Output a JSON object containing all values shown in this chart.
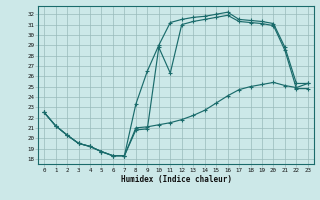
{
  "xlabel": "Humidex (Indice chaleur)",
  "background_color": "#cce8e8",
  "grid_color": "#99bbbb",
  "line_color": "#1a6b6b",
  "xlim": [
    -0.5,
    23.5
  ],
  "ylim": [
    17.5,
    32.8
  ],
  "xtick_vals": [
    0,
    1,
    2,
    3,
    4,
    5,
    6,
    7,
    8,
    9,
    10,
    11,
    12,
    13,
    14,
    15,
    16,
    17,
    18,
    19,
    20,
    21,
    22,
    23
  ],
  "ytick_vals": [
    18,
    19,
    20,
    21,
    22,
    23,
    24,
    25,
    26,
    27,
    28,
    29,
    30,
    31,
    32
  ],
  "curve1_x": [
    0,
    1,
    2,
    3,
    4,
    5,
    6,
    7,
    8,
    9,
    10,
    11,
    12,
    13,
    14,
    15,
    16,
    17,
    18,
    19,
    20,
    21,
    22,
    23
  ],
  "curve1_y": [
    22.5,
    21.2,
    20.3,
    19.5,
    19.2,
    18.7,
    18.3,
    18.3,
    23.3,
    26.5,
    29.0,
    31.2,
    31.5,
    31.7,
    31.8,
    32.0,
    32.2,
    31.5,
    31.4,
    31.3,
    31.1,
    28.8,
    25.3,
    25.3
  ],
  "curve2_x": [
    0,
    1,
    2,
    3,
    4,
    5,
    6,
    7,
    8,
    9,
    10,
    11,
    12,
    13,
    14,
    15,
    16,
    17,
    18,
    19,
    20,
    21,
    22,
    23
  ],
  "curve2_y": [
    22.5,
    21.2,
    20.3,
    19.5,
    19.2,
    18.7,
    18.3,
    18.3,
    21.0,
    21.1,
    21.3,
    21.5,
    21.8,
    22.2,
    22.7,
    23.4,
    24.1,
    24.7,
    25.0,
    25.2,
    25.4,
    25.1,
    24.9,
    25.3
  ],
  "curve3_x": [
    0,
    1,
    2,
    3,
    4,
    5,
    6,
    7,
    8,
    9,
    10,
    11,
    12,
    13,
    14,
    15,
    16,
    17,
    18,
    19,
    20,
    21,
    22,
    23
  ],
  "curve3_y": [
    22.5,
    21.2,
    20.3,
    19.5,
    19.2,
    18.7,
    18.3,
    18.3,
    20.8,
    20.9,
    28.8,
    26.3,
    31.0,
    31.3,
    31.5,
    31.7,
    31.9,
    31.3,
    31.2,
    31.1,
    30.9,
    28.5,
    24.8,
    24.8
  ]
}
